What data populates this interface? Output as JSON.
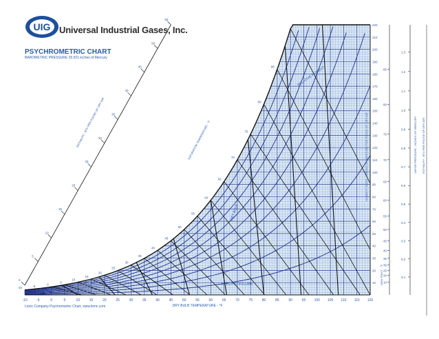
{
  "header": {
    "company_name": "Universal Industrial Gases, Inc.",
    "logo_text": "UIG",
    "chart_title": "PSYCHROMETRIC CHART",
    "pressure_note": "BAROMETRIC PRESSURE 29.921 inches of Mercury"
  },
  "footer": {
    "credit": "Linric Company Psychrometric Chart, www.linric.com"
  },
  "colors": {
    "grid": "#1c2f8a",
    "fill": "#d8e8f6",
    "accent": "#2a5aa8",
    "dark": "#111111"
  },
  "chart_data": {
    "type": "line",
    "xlabel": "DRY BULB TEMPERATURE - °F",
    "ylabel": "HUMIDITY RATIO - GRAINS OF MOISTURE PER POUND OF DRY AIR",
    "ylabel2": "VAPOR PRESSURE - INCHES OF MERCURY",
    "ylabel3": "ENTHALPY - BTU PER POUND OF DRY AIR",
    "dewpoint_label": "DEW POINT - °F",
    "enthalpy_scale_label": "ENTHALPY - BTU PER POUND OF DRY AIR",
    "saturation_label": "SATURATION TEMPERATURE - °F",
    "xlim": [
      -10,
      120
    ],
    "ylim": [
      0,
      220
    ],
    "x_ticks": [
      -10,
      -5,
      0,
      5,
      10,
      15,
      20,
      25,
      30,
      35,
      40,
      45,
      50,
      55,
      60,
      65,
      70,
      75,
      80,
      85,
      90,
      95,
      100,
      105,
      110,
      115,
      120
    ],
    "y_ticks": [
      10,
      20,
      30,
      40,
      50,
      60,
      70,
      80,
      90,
      100,
      110,
      120,
      130,
      140,
      150,
      160,
      170,
      180,
      190,
      200,
      210,
      220
    ],
    "dewpoint_ticks": [
      10,
      20,
      25,
      30,
      35,
      40,
      45,
      50,
      55,
      60,
      65,
      70,
      75,
      80,
      85
    ],
    "vapor_pressure_ticks": [
      0.1,
      0.2,
      0.3,
      0.4,
      0.5,
      0.6,
      0.7,
      0.8,
      0.9,
      1.0,
      1.1,
      1.2,
      1.3
    ],
    "saturation_ticks": [
      -10,
      -5,
      0,
      5,
      10,
      15,
      20,
      25,
      30,
      35,
      40,
      45,
      50,
      55,
      60,
      65,
      70,
      75,
      80,
      85
    ],
    "enthalpy_ticks": [
      0,
      5,
      10,
      15,
      20,
      25,
      30,
      35,
      40,
      45,
      50,
      55
    ],
    "annotations": [
      "RELATIVE HUMIDITY",
      "WET BULB",
      "SPECIFIC VOLUME"
    ]
  }
}
